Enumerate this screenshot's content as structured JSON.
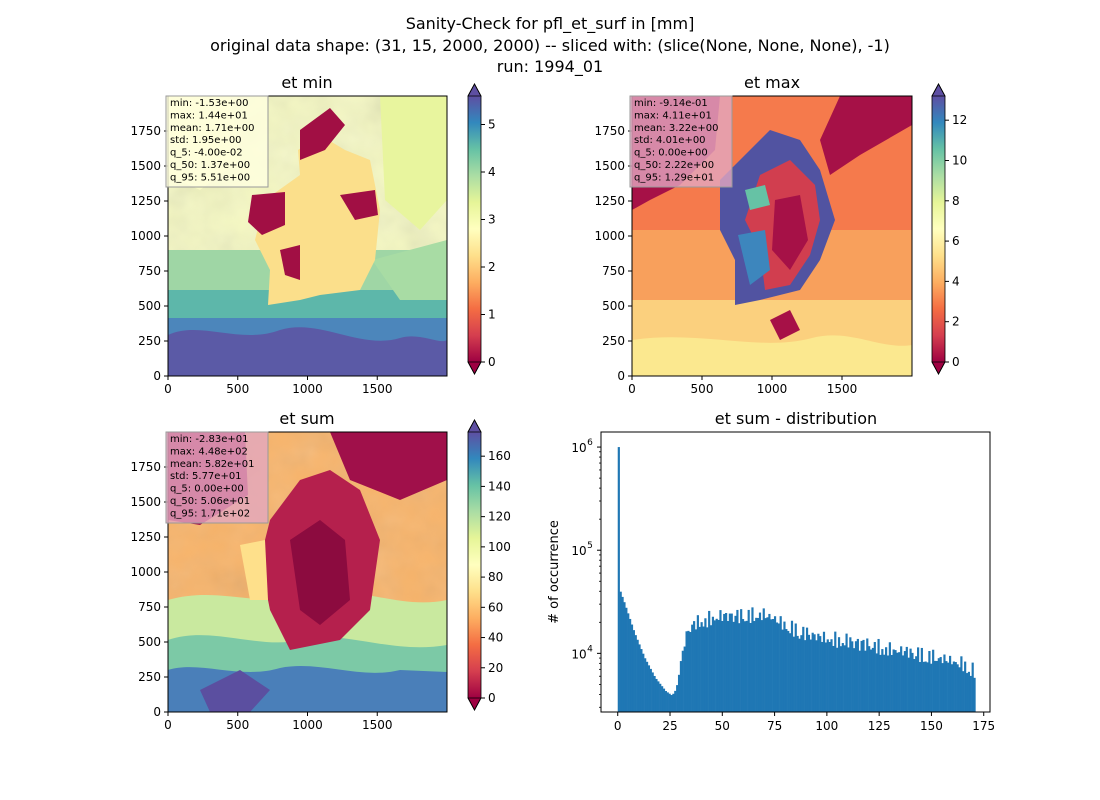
{
  "figure": {
    "title_lines": [
      "Sanity-Check for pfl_et_surf in [mm]",
      "original data shape: (31, 15, 2000, 2000) -- sliced with: (slice(None, None, None), -1)",
      "run: 1994_01"
    ]
  },
  "spectral_stops": [
    "#9e0142",
    "#d53e4f",
    "#f46d43",
    "#fdae61",
    "#fee08b",
    "#ffffbf",
    "#e6f598",
    "#abdda4",
    "#66c2a5",
    "#3288bd",
    "#5e4fa2"
  ],
  "chart_data": [
    {
      "type": "heatmap",
      "title": "et min",
      "x_ticks": [
        0,
        500,
        1000,
        1500
      ],
      "y_ticks": [
        0,
        250,
        500,
        750,
        1000,
        1250,
        1500,
        1750
      ],
      "xlim": [
        0,
        2000
      ],
      "ylim": [
        0,
        2000
      ],
      "colorbar": {
        "range": [
          0,
          5.6
        ],
        "ticks": [
          0,
          1,
          2,
          3,
          4,
          5
        ],
        "extend": "both"
      },
      "stats": [
        "min: -1.53e+00",
        "max: 1.44e+01",
        "mean: 1.71e+00",
        "std: 1.95e+00",
        "q_5: -4.00e-02",
        "q_50: 1.37e+00",
        "q_95: 5.51e+00"
      ],
      "stats_box_color": "#ffffe0"
    },
    {
      "type": "heatmap",
      "title": "et max",
      "x_ticks": [
        0,
        500,
        1000,
        1500
      ],
      "y_ticks": [
        0,
        250,
        500,
        750,
        1000,
        1250,
        1500,
        1750
      ],
      "xlim": [
        0,
        2000
      ],
      "ylim": [
        0,
        2000
      ],
      "colorbar": {
        "range": [
          0,
          13.2
        ],
        "ticks": [
          0,
          2,
          4,
          6,
          8,
          10,
          12
        ],
        "extend": "both"
      },
      "stats": [
        "min: -9.14e-01",
        "max: 4.11e+01",
        "mean: 3.22e+00",
        "std: 4.01e+00",
        "q_5: 0.00e+00",
        "q_50: 2.22e+00",
        "q_95: 1.29e+01"
      ],
      "stats_box_color": "#e3a7c0"
    },
    {
      "type": "heatmap",
      "title": "et sum",
      "x_ticks": [
        0,
        500,
        1000,
        1500
      ],
      "y_ticks": [
        0,
        250,
        500,
        750,
        1000,
        1250,
        1500,
        1750
      ],
      "xlim": [
        0,
        2000
      ],
      "ylim": [
        0,
        2000
      ],
      "colorbar": {
        "range": [
          0,
          176
        ],
        "ticks": [
          0,
          20,
          40,
          60,
          80,
          100,
          120,
          140,
          160
        ],
        "extend": "both"
      },
      "stats": [
        "min: -2.83e+01",
        "max: 4.48e+02",
        "mean: 5.82e+01",
        "std: 5.77e+01",
        "q_5: 0.00e+00",
        "q_50: 5.06e+01",
        "q_95: 1.71e+02"
      ],
      "stats_box_color": "#e3a7c0"
    },
    {
      "type": "bar",
      "title": "et sum - distribution",
      "ylabel": "# of occurrence",
      "x_ticks": [
        0,
        25,
        50,
        75,
        100,
        125,
        150,
        175
      ],
      "xlim": [
        -8,
        178
      ],
      "ylog": true,
      "ylim": [
        2700,
        1400000
      ],
      "y_ticks": [
        10000,
        100000,
        1000000
      ],
      "y_tick_labels": [
        [
          "10",
          "4"
        ],
        [
          "10",
          "5"
        ],
        [
          "10",
          "6"
        ]
      ],
      "bin_range": [
        0,
        171
      ],
      "color": "#1f77b4",
      "keypoints": [
        [
          0,
          1000000
        ],
        [
          0.9,
          42000
        ],
        [
          3,
          32000
        ],
        [
          8,
          16000
        ],
        [
          13,
          9000
        ],
        [
          18,
          5800
        ],
        [
          23,
          4300
        ],
        [
          26,
          3900
        ],
        [
          28,
          4500
        ],
        [
          30,
          7500
        ],
        [
          32,
          14000
        ],
        [
          35,
          19000
        ],
        [
          40,
          21000
        ],
        [
          50,
          23500
        ],
        [
          60,
          24000
        ],
        [
          70,
          24000
        ],
        [
          75,
          22000
        ],
        [
          80,
          19000
        ],
        [
          90,
          16000
        ],
        [
          100,
          14000
        ],
        [
          110,
          13500
        ],
        [
          120,
          12500
        ],
        [
          130,
          11000
        ],
        [
          140,
          10500
        ],
        [
          150,
          9500
        ],
        [
          160,
          8500
        ],
        [
          165,
          8000
        ],
        [
          170,
          7000
        ]
      ]
    }
  ]
}
